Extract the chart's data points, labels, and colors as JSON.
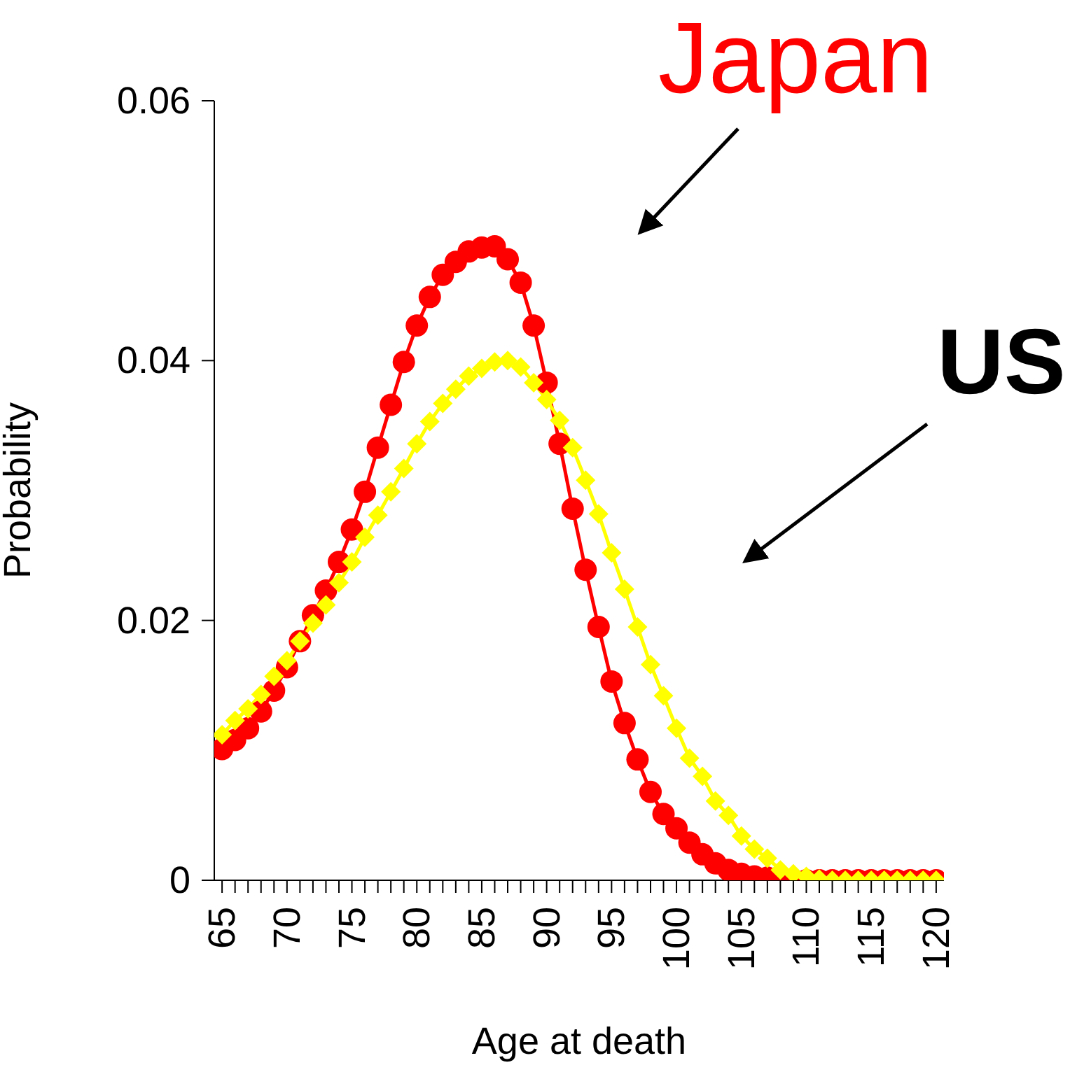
{
  "chart_data": {
    "type": "line",
    "xlabel": "Age at death",
    "ylabel": "Probability",
    "x": [
      65,
      66,
      67,
      68,
      69,
      70,
      71,
      72,
      73,
      74,
      75,
      76,
      77,
      78,
      79,
      80,
      81,
      82,
      83,
      84,
      85,
      86,
      87,
      88,
      89,
      90,
      91,
      92,
      93,
      94,
      95,
      96,
      97,
      98,
      99,
      100,
      101,
      102,
      103,
      104,
      105,
      106,
      107,
      108,
      109,
      110,
      111,
      112,
      113,
      114,
      115,
      116,
      117,
      118,
      119,
      120
    ],
    "series": [
      {
        "color": "#ff0000",
        "marker": "circle",
        "values": [
          0.0101,
          0.0108,
          0.0117,
          0.013,
          0.0146,
          0.0164,
          0.0184,
          0.0204,
          0.0223,
          0.0245,
          0.027,
          0.0299,
          0.0333,
          0.0366,
          0.0399,
          0.0427,
          0.0449,
          0.0466,
          0.0476,
          0.0484,
          0.0487,
          0.0488,
          0.0478,
          0.046,
          0.0427,
          0.0383,
          0.0336,
          0.0286,
          0.0239,
          0.0195,
          0.0153,
          0.0121,
          0.0093,
          0.0068,
          0.0051,
          0.004,
          0.0029,
          0.002,
          0.0013,
          0.0008,
          0.0005,
          0.0003,
          0.0002,
          0.0001,
          0,
          0,
          0,
          0,
          0,
          0,
          0,
          0,
          0,
          0,
          0,
          0
        ]
      },
      {
        "color": "#ffff00",
        "marker": "diamond",
        "values": [
          0.0112,
          0.0123,
          0.0132,
          0.0143,
          0.0157,
          0.0169,
          0.0184,
          0.0198,
          0.0212,
          0.0229,
          0.0245,
          0.0264,
          0.0281,
          0.0299,
          0.0317,
          0.0336,
          0.0353,
          0.0367,
          0.0378,
          0.0388,
          0.0394,
          0.0399,
          0.04,
          0.0395,
          0.0383,
          0.037,
          0.0354,
          0.0333,
          0.0308,
          0.0282,
          0.0252,
          0.0224,
          0.0195,
          0.0166,
          0.0142,
          0.0117,
          0.0094,
          0.008,
          0.0061,
          0.005,
          0.0034,
          0.0024,
          0.0017,
          0.0008,
          0.0005,
          0.0003,
          0.0001,
          0,
          0,
          0,
          0,
          0,
          0,
          0,
          0,
          0
        ]
      }
    ],
    "xlim": [
      64.4,
      120.6
    ],
    "xticks": [
      65,
      {
        "value": 66,
        "label": null
      },
      {
        "value": 67,
        "label": null
      },
      {
        "value": 68,
        "label": null
      },
      {
        "value": 69,
        "label": null
      },
      70,
      {
        "value": 71,
        "label": null
      },
      {
        "value": 72,
        "label": null
      },
      {
        "value": 73,
        "label": null
      },
      {
        "value": 74,
        "label": null
      },
      75,
      {
        "value": 76,
        "label": null
      },
      {
        "value": 77,
        "label": null
      },
      {
        "value": 78,
        "label": null
      },
      {
        "value": 79,
        "label": null
      },
      80,
      {
        "value": 81,
        "label": null
      },
      {
        "value": 82,
        "label": null
      },
      {
        "value": 83,
        "label": null
      },
      {
        "value": 84,
        "label": null
      },
      85,
      {
        "value": 86,
        "label": null
      },
      {
        "value": 87,
        "label": null
      },
      {
        "value": 88,
        "label": null
      },
      {
        "value": 89,
        "label": null
      },
      90,
      {
        "value": 91,
        "label": null
      },
      {
        "value": 92,
        "label": null
      },
      {
        "value": 93,
        "label": null
      },
      {
        "value": 94,
        "label": null
      },
      95,
      {
        "value": 96,
        "label": null
      },
      {
        "value": 97,
        "label": null
      },
      {
        "value": 98,
        "label": null
      },
      {
        "value": 99,
        "label": null
      },
      100,
      {
        "value": 101,
        "label": null
      },
      {
        "value": 102,
        "label": null
      },
      {
        "value": 103,
        "label": null
      },
      {
        "value": 104,
        "label": null
      },
      105,
      {
        "value": 106,
        "label": null
      },
      {
        "value": 107,
        "label": null
      },
      {
        "value": 108,
        "label": null
      },
      {
        "value": 109,
        "label": null
      },
      110,
      {
        "value": 111,
        "label": null
      },
      {
        "value": 112,
        "label": null
      },
      {
        "value": 113,
        "label": null
      },
      {
        "value": 114,
        "label": null
      },
      115,
      {
        "value": 116,
        "label": null
      },
      {
        "value": 117,
        "label": null
      },
      {
        "value": 118,
        "label": null
      },
      {
        "value": 119,
        "label": null
      },
      120
    ],
    "ylim": [
      0,
      0.06
    ],
    "yticks": [
      0,
      0.02,
      0.04,
      0.06
    ],
    "annotations": [
      "Japan",
      "US"
    ],
    "grid": false,
    "legend": false,
    "line_style": "solid"
  }
}
